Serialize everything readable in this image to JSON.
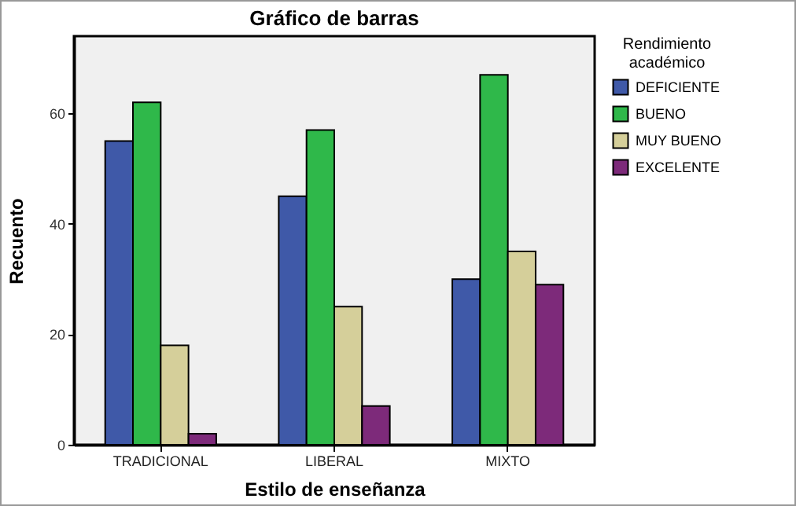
{
  "chart_data": {
    "type": "bar",
    "title": "Gráfico de barras",
    "xlabel": "Estilo de enseñanza",
    "ylabel": "Recuento",
    "legend_title": "Rendimiento académico",
    "categories": [
      "TRADICIONAL",
      "LIBERAL",
      "MIXTO"
    ],
    "series": [
      {
        "name": "DEFICIENTE",
        "color": "#3f59a8",
        "values": [
          55,
          45,
          30
        ]
      },
      {
        "name": "BUENO",
        "color": "#2fb84a",
        "values": [
          62,
          57,
          67
        ]
      },
      {
        "name": "MUY BUENO",
        "color": "#d5cf9a",
        "values": [
          18,
          25,
          35
        ]
      },
      {
        "name": "EXCELENTE",
        "color": "#7d2a7a",
        "values": [
          2,
          7,
          29
        ]
      }
    ],
    "ylim": [
      0,
      74
    ],
    "yticks": [
      0,
      20,
      40,
      60
    ],
    "grid": false,
    "legend": "top right"
  }
}
